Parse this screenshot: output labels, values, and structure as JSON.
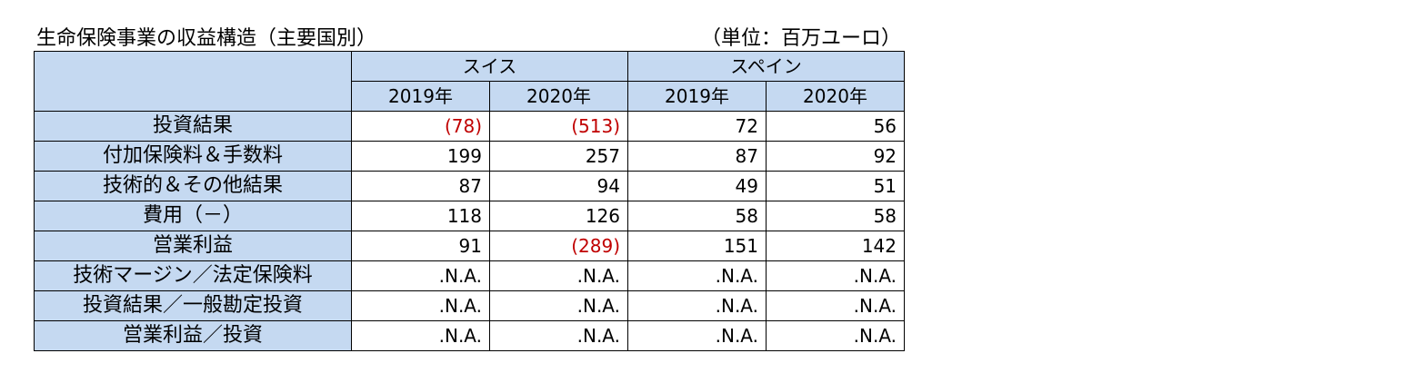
{
  "title": "生命保険事業の収益構造（主要国別）",
  "unit": "（単位：百万ユーロ）",
  "countries": [
    "スイス",
    "スペイン"
  ],
  "years": [
    "2019年",
    "2020年",
    "2019年",
    "2020年"
  ],
  "rows": [
    {
      "label": "投資結果",
      "values": [
        "(78)",
        "(513)",
        "72",
        "56"
      ],
      "negative": [
        true,
        true,
        false,
        false
      ]
    },
    {
      "label": "付加保険料＆手数料",
      "values": [
        "199",
        "257",
        "87",
        "92"
      ],
      "negative": [
        false,
        false,
        false,
        false
      ]
    },
    {
      "label": "技術的＆その他結果",
      "values": [
        "87",
        "94",
        "49",
        "51"
      ],
      "negative": [
        false,
        false,
        false,
        false
      ]
    },
    {
      "label": "費用（－）",
      "values": [
        "118",
        "126",
        "58",
        "58"
      ],
      "negative": [
        false,
        false,
        false,
        false
      ]
    },
    {
      "label": "営業利益",
      "values": [
        "91",
        "(289)",
        "151",
        "142"
      ],
      "negative": [
        false,
        true,
        false,
        false
      ]
    },
    {
      "label": "技術マージン／法定保険料",
      "values": [
        ".N.A.",
        ".N.A.",
        ".N.A.",
        ".N.A."
      ],
      "negative": [
        false,
        false,
        false,
        false
      ]
    },
    {
      "label": "投資結果／一般勘定投資",
      "values": [
        ".N.A.",
        ".N.A.",
        ".N.A.",
        ".N.A."
      ],
      "negative": [
        false,
        false,
        false,
        false
      ]
    },
    {
      "label": "営業利益／投資",
      "values": [
        ".N.A.",
        ".N.A.",
        ".N.A.",
        ".N.A."
      ],
      "negative": [
        false,
        false,
        false,
        false
      ]
    }
  ],
  "colors": {
    "header_bg": "#c5d9f1",
    "negative_text": "#c00000"
  }
}
